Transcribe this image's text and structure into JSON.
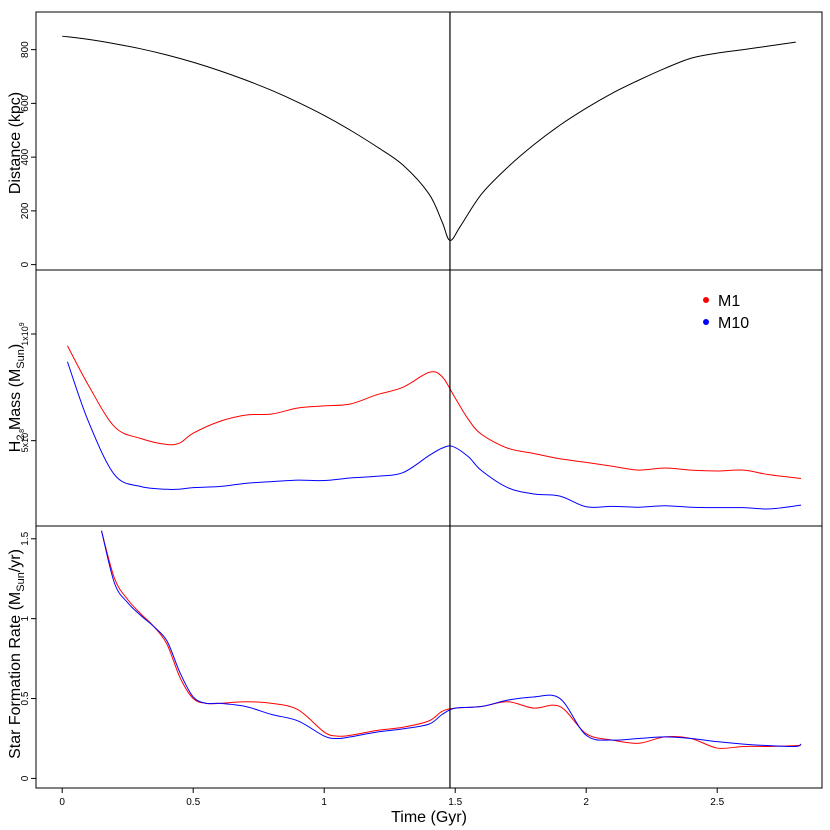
{
  "chart_data": [
    {
      "type": "line",
      "panel": "top",
      "ylabel": "Distance (kpc)",
      "xlim": [
        -0.1,
        2.9
      ],
      "ylim": [
        -20,
        940
      ],
      "yticks": [
        0,
        200,
        400,
        600,
        800
      ],
      "ytick_labels": [
        "0",
        "200",
        "400",
        "600",
        "800"
      ],
      "series": [
        {
          "name": "distance",
          "color": "#000000",
          "x": [
            0.0,
            0.1,
            0.2,
            0.3,
            0.4,
            0.5,
            0.6,
            0.7,
            0.8,
            0.9,
            1.0,
            1.1,
            1.2,
            1.3,
            1.4,
            1.45,
            1.48,
            1.52,
            1.6,
            1.7,
            1.8,
            1.9,
            2.0,
            2.1,
            2.2,
            2.3,
            2.4,
            2.5,
            2.6,
            2.7,
            2.8
          ],
          "y": [
            850,
            838,
            822,
            803,
            780,
            753,
            722,
            687,
            648,
            604,
            555,
            500,
            439,
            371,
            263,
            159,
            90,
            143,
            262,
            362,
            446,
            519,
            582,
            638,
            686,
            730,
            768,
            787,
            800,
            814,
            828
          ]
        }
      ]
    },
    {
      "type": "line",
      "panel": "middle",
      "ylabel_main": "H",
      "ylabel_sub": "2",
      "ylabel_rest": " Mass (M",
      "ylabel_sub2": "Sun",
      "ylabel_end": ")",
      "xlim": [
        -0.1,
        2.9
      ],
      "ylim": [
        100000000,
        1300000000
      ],
      "yticks": [
        500000000,
        1000000000
      ],
      "ytick_labels": [
        {
          "base": "5x10",
          "exp": "8"
        },
        {
          "base": "1x10",
          "exp": "9"
        }
      ],
      "legend": {
        "position": "top-right",
        "entries": [
          "M1",
          "M10"
        ]
      },
      "series": [
        {
          "name": "M1",
          "color": "#ff0000",
          "x": [
            0.02,
            0.1,
            0.2,
            0.3,
            0.4,
            0.45,
            0.5,
            0.6,
            0.7,
            0.8,
            0.9,
            1.0,
            1.1,
            1.2,
            1.3,
            1.4,
            1.45,
            1.5,
            1.55,
            1.6,
            1.7,
            1.8,
            1.9,
            2.0,
            2.1,
            2.2,
            2.3,
            2.4,
            2.5,
            2.6,
            2.7,
            2.82
          ],
          "y": [
            945000000,
            760000000,
            565000000,
            510000000,
            482000000,
            490000000,
            535000000,
            590000000,
            620000000,
            625000000,
            653000000,
            663000000,
            672000000,
            715000000,
            750000000,
            820000000,
            800000000,
            700000000,
            600000000,
            530000000,
            465000000,
            440000000,
            415000000,
            398000000,
            380000000,
            362000000,
            372000000,
            362000000,
            358000000,
            362000000,
            340000000,
            323000000
          ]
        },
        {
          "name": "M10",
          "color": "#0000ff",
          "x": [
            0.02,
            0.1,
            0.2,
            0.3,
            0.4,
            0.45,
            0.5,
            0.6,
            0.7,
            0.8,
            0.9,
            1.0,
            1.1,
            1.2,
            1.3,
            1.4,
            1.45,
            1.49,
            1.55,
            1.6,
            1.7,
            1.8,
            1.9,
            2.0,
            2.1,
            2.2,
            2.3,
            2.4,
            2.5,
            2.6,
            2.7,
            2.82
          ],
          "y": [
            870000000,
            590000000,
            340000000,
            285000000,
            272000000,
            273000000,
            280000000,
            285000000,
            300000000,
            308000000,
            315000000,
            313000000,
            325000000,
            333000000,
            350000000,
            430000000,
            465000000,
            473000000,
            425000000,
            360000000,
            280000000,
            250000000,
            240000000,
            190000000,
            192000000,
            188000000,
            195000000,
            188000000,
            186000000,
            186000000,
            180000000,
            198000000
          ]
        }
      ]
    },
    {
      "type": "line",
      "panel": "bottom",
      "ylabel_main": "Star Formation Rate (M",
      "ylabel_sub": "Sun",
      "ylabel_end": "/yr)",
      "xlabel": "Time (Gyr)",
      "xlim": [
        -0.1,
        2.9
      ],
      "ylim": [
        -0.06,
        1.58
      ],
      "yticks": [
        0,
        0.5,
        1,
        1.5
      ],
      "ytick_labels": [
        "0",
        "0.5",
        "1",
        "1.5"
      ],
      "xticks": [
        0,
        0.5,
        1,
        1.5,
        2,
        2.5
      ],
      "xtick_labels": [
        "0",
        "0.5",
        "1",
        "1.5",
        "2",
        "2.5"
      ],
      "series": [
        {
          "name": "M1",
          "color": "#ff0000",
          "x": [
            0.15,
            0.2,
            0.25,
            0.3,
            0.35,
            0.4,
            0.45,
            0.5,
            0.55,
            0.6,
            0.7,
            0.8,
            0.9,
            1.0,
            1.05,
            1.1,
            1.2,
            1.3,
            1.4,
            1.45,
            1.5,
            1.6,
            1.7,
            1.8,
            1.9,
            2.0,
            2.1,
            2.2,
            2.3,
            2.4,
            2.5,
            2.6,
            2.7,
            2.8,
            2.82
          ],
          "y": [
            1.55,
            1.25,
            1.12,
            1.03,
            0.95,
            0.84,
            0.63,
            0.5,
            0.47,
            0.47,
            0.48,
            0.47,
            0.43,
            0.29,
            0.265,
            0.27,
            0.3,
            0.32,
            0.36,
            0.42,
            0.44,
            0.45,
            0.48,
            0.44,
            0.45,
            0.28,
            0.24,
            0.22,
            0.26,
            0.25,
            0.19,
            0.2,
            0.2,
            0.205,
            0.21
          ]
        },
        {
          "name": "M10",
          "color": "#0000ff",
          "x": [
            0.15,
            0.2,
            0.25,
            0.3,
            0.35,
            0.4,
            0.45,
            0.5,
            0.55,
            0.6,
            0.7,
            0.8,
            0.9,
            1.0,
            1.05,
            1.1,
            1.2,
            1.3,
            1.4,
            1.45,
            1.5,
            1.6,
            1.7,
            1.8,
            1.9,
            2.0,
            2.1,
            2.2,
            2.3,
            2.4,
            2.5,
            2.6,
            2.7,
            2.8,
            2.82
          ],
          "y": [
            1.55,
            1.22,
            1.1,
            1.02,
            0.95,
            0.86,
            0.66,
            0.51,
            0.47,
            0.47,
            0.45,
            0.4,
            0.36,
            0.265,
            0.25,
            0.26,
            0.29,
            0.31,
            0.34,
            0.4,
            0.44,
            0.45,
            0.49,
            0.51,
            0.5,
            0.27,
            0.24,
            0.25,
            0.26,
            0.25,
            0.23,
            0.215,
            0.205,
            0.2,
            0.215
          ]
        }
      ]
    }
  ],
  "vline": {
    "x": 1.48,
    "color": "#000000"
  }
}
